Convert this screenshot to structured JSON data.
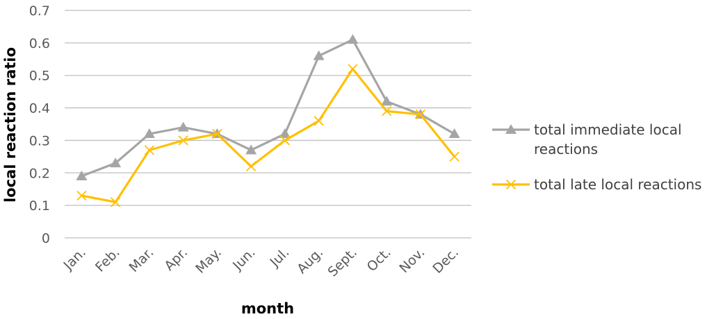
{
  "chart_data": {
    "type": "line",
    "categories": [
      "Jan.",
      "Feb.",
      "Mar.",
      "Apr.",
      "May.",
      "Jun.",
      "Jul.",
      "Aug.",
      "Sept.",
      "Oct.",
      "Nov.",
      "Dec."
    ],
    "series": [
      {
        "name": "total immediate local reactions",
        "legend_lines": [
          "total immediate local",
          "reactions"
        ],
        "marker": "triangle",
        "color": "#a5a5a5",
        "values": [
          0.19,
          0.23,
          0.32,
          0.34,
          0.32,
          0.27,
          0.32,
          0.56,
          0.61,
          0.42,
          0.38,
          0.32
        ]
      },
      {
        "name": "total late local reactions",
        "legend_lines": [
          "total late local reactions"
        ],
        "marker": "x",
        "color": "#ffc000",
        "values": [
          0.13,
          0.11,
          0.27,
          0.3,
          0.32,
          0.22,
          0.3,
          0.36,
          0.52,
          0.39,
          0.38,
          0.25
        ]
      }
    ],
    "xlabel": "month",
    "ylabel": "local reaction ratio",
    "ylim": [
      0,
      0.7
    ],
    "yticks": [
      "0",
      "0.1",
      "0.2",
      "0.3",
      "0.4",
      "0.5",
      "0.6",
      "0.7"
    ],
    "grid": true,
    "legend_position": "right",
    "gridline_color": "#bfbfbf"
  }
}
